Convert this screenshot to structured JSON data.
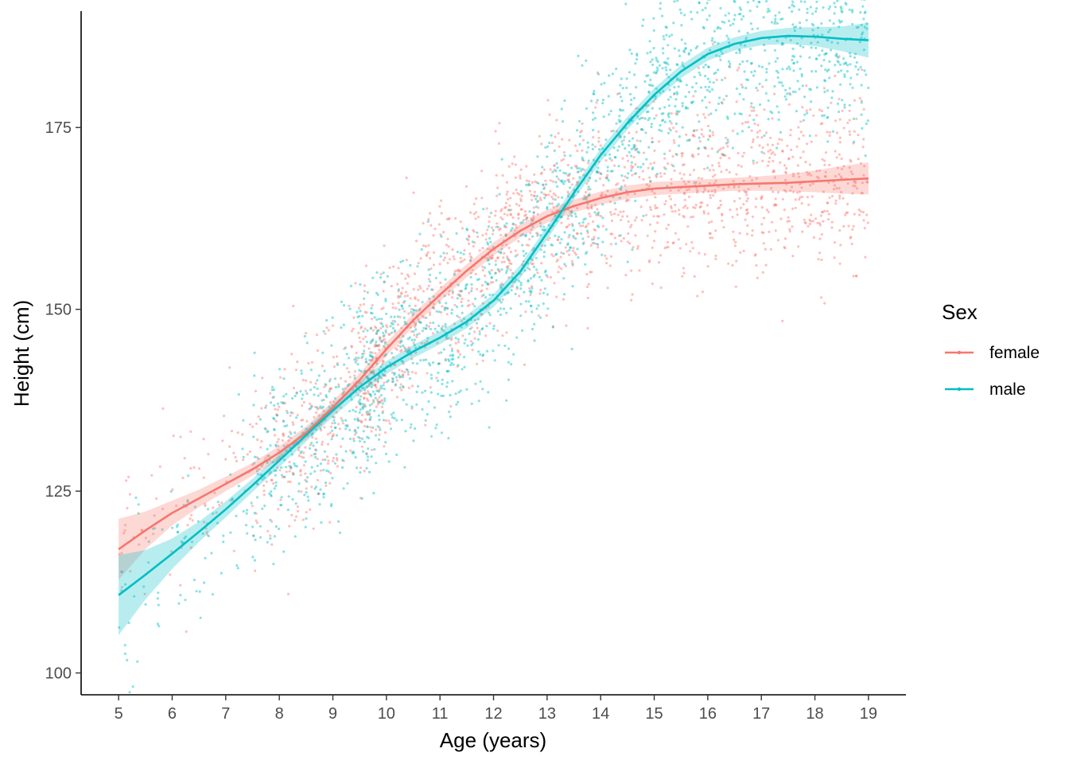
{
  "chart_data": {
    "type": "scatter",
    "title": "",
    "xlabel": "Age (years)",
    "ylabel": "Height (cm)",
    "xlim": [
      4.3,
      19.7
    ],
    "ylim": [
      97,
      191
    ],
    "xticks": [
      5,
      6,
      7,
      8,
      9,
      10,
      11,
      12,
      13,
      14,
      15,
      16,
      17,
      18,
      19
    ],
    "yticks": [
      100,
      125,
      150,
      175
    ],
    "grid": false,
    "legend": {
      "title": "Sex",
      "position": "right"
    },
    "series": [
      {
        "name": "female",
        "color": "#F8766D",
        "smooth": {
          "x": [
            5,
            5.5,
            6,
            6.5,
            7,
            7.5,
            8,
            8.5,
            9,
            9.5,
            10,
            10.5,
            11,
            11.5,
            12,
            12.5,
            13,
            13.5,
            14,
            14.5,
            15,
            15.5,
            16,
            16.5,
            17,
            17.5,
            18,
            18.5,
            19
          ],
          "y": [
            117,
            119.6,
            122,
            124,
            126,
            128,
            130.3,
            133,
            136.5,
            140.3,
            144.5,
            148.5,
            152,
            155.3,
            158.3,
            160.8,
            162.8,
            164.2,
            165.3,
            166.1,
            166.6,
            166.8,
            167,
            167.2,
            167.3,
            167.4,
            167.6,
            167.8,
            168
          ]
        },
        "ci_halfwidth": [
          4.2,
          2.6,
          1.7,
          1.2,
          1,
          0.9,
          0.9,
          0.9,
          0.9,
          0.9,
          0.9,
          0.9,
          0.9,
          0.9,
          0.9,
          0.9,
          0.9,
          0.9,
          0.9,
          0.9,
          0.9,
          0.9,
          0.9,
          0.9,
          1,
          1.2,
          1.5,
          1.9,
          2.2
        ],
        "point_sd": 6.2,
        "n_points": 1900
      },
      {
        "name": "male",
        "color": "#00BFC4",
        "smooth": {
          "x": [
            5,
            5.5,
            6,
            6.5,
            7,
            7.5,
            8,
            8.5,
            9,
            9.5,
            10,
            10.5,
            11,
            11.5,
            12,
            12.5,
            13,
            13.5,
            14,
            14.5,
            15,
            15.5,
            16,
            16.5,
            17,
            17.5,
            18,
            18.5,
            19
          ],
          "y": [
            110.7,
            113.5,
            116.4,
            119.4,
            122.5,
            125.8,
            129.2,
            132.7,
            136.1,
            139.3,
            142,
            144.2,
            146.1,
            148.3,
            151.2,
            155.2,
            160.5,
            166,
            171.2,
            175.6,
            179.5,
            182.7,
            185.1,
            186.5,
            187.3,
            187.6,
            187.5,
            187.2,
            187
          ]
        },
        "ci_halfwidth": [
          5.5,
          3.4,
          2.1,
          1.4,
          1.1,
          0.9,
          0.9,
          0.9,
          0.9,
          0.9,
          0.9,
          0.9,
          0.9,
          0.9,
          0.9,
          0.9,
          0.9,
          0.9,
          0.9,
          0.9,
          0.9,
          0.9,
          0.9,
          0.9,
          1,
          1.1,
          1.3,
          1.7,
          2.4
        ],
        "point_sd": 6.5,
        "n_points": 1950
      }
    ]
  }
}
